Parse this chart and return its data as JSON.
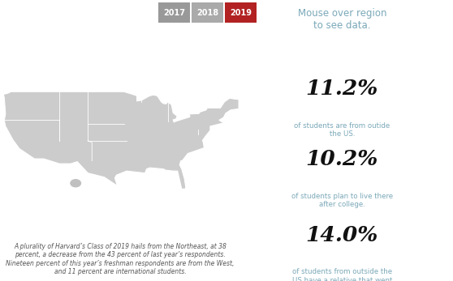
{
  "bg_color": "#ffffff",
  "legend_years": [
    "2017",
    "2018",
    "2019"
  ],
  "legend_colors": [
    "#999999",
    "#aaaaaa",
    "#b22222"
  ],
  "mouse_over_text": "Mouse over region\nto see data.",
  "mouse_over_color": "#7aa8b8",
  "stats": [
    {
      "value": "11.2%",
      "desc": "of students are from outide\nthe US."
    },
    {
      "value": "10.2%",
      "desc": "of students plan to live there\nafter college."
    },
    {
      "value": "14.0%",
      "desc": "of students from outside the\nUS have a relative that went\nto Harvard College."
    }
  ],
  "stat_value_color": "#111111",
  "stat_desc_color": "#7aa8b8",
  "bottom_text": "A plurality of Harvard’s Class of 2019 hails from the Northeast, at 38\npercent, a decrease from the 43 percent of last year’s respondents.\nNineteen percent of this year’s freshman respondents are from the West,\nand 11 percent are international students.",
  "bottom_text_color": "#555555",
  "map_color": "#cccccc",
  "map_border_color": "#f0f0f0",
  "hawaii_color": "#c0c0c0",
  "divider_color": "#dddddd"
}
